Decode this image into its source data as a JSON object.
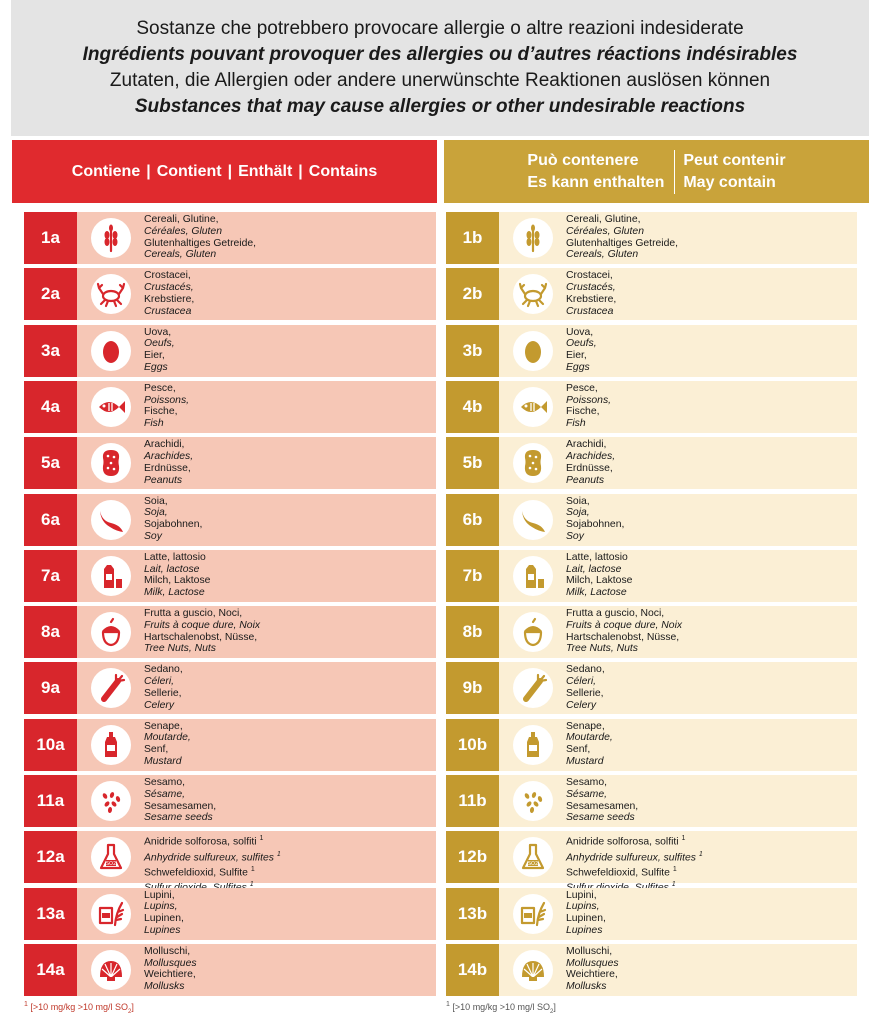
{
  "header": {
    "line_it": "Sostanze che potrebbero provocare allergie o altre reazioni indesiderate",
    "line_fr": "Ingrédients pouvant provoquer des allergies ou d’autres réactions indésirables",
    "line_de": "Zutaten, die Allergien oder andere unerwünschte Reaktionen auslösen können",
    "line_en": "Substances that may cause allergies or other undesirable reactions"
  },
  "contains": {
    "it": "Contiene",
    "fr": "Contient",
    "de": "Enthält",
    "en": "Contains",
    "sep": "|"
  },
  "may_contain": {
    "it": "Può contenere",
    "fr": "Peut contenir",
    "de": "Es kann enthalten",
    "en": "May contain"
  },
  "colors": {
    "red": "#e02a2e",
    "gold": "#c9a33a",
    "red_row": "#f6c7b6",
    "gold_row": "#fbefd5"
  },
  "allergens": [
    {
      "a": "1a",
      "b": "1b",
      "icon": "wheat-icon",
      "it": "Cereali, Glutine,",
      "fr": "Céréales, Gluten",
      "de": "Glutenhaltiges Getreide,",
      "en": "Cereals, Gluten"
    },
    {
      "a": "2a",
      "b": "2b",
      "icon": "crab-icon",
      "it": "Crostacei,",
      "fr": "Crustacés,",
      "de": "Krebstiere,",
      "en": "Crustacea"
    },
    {
      "a": "3a",
      "b": "3b",
      "icon": "egg-icon",
      "it": "Uova,",
      "fr": "Oeufs,",
      "de": "Eier,",
      "en": "Eggs"
    },
    {
      "a": "4a",
      "b": "4b",
      "icon": "fish-icon",
      "it": "Pesce,",
      "fr": "Poissons,",
      "de": "Fische,",
      "en": "Fish"
    },
    {
      "a": "5a",
      "b": "5b",
      "icon": "peanut-icon",
      "it": "Arachidi,",
      "fr": "Arachides,",
      "de": "Erdnüsse,",
      "en": "Peanuts"
    },
    {
      "a": "6a",
      "b": "6b",
      "icon": "soy-icon",
      "it": "Soia,",
      "fr": "Soja,",
      "de": "Sojabohnen,",
      "en": "Soy"
    },
    {
      "a": "7a",
      "b": "7b",
      "icon": "milk-icon",
      "it": "Latte, lattosio",
      "fr": "Lait, lactose",
      "de": "Milch, Laktose",
      "en": "Milk, Lactose"
    },
    {
      "a": "8a",
      "b": "8b",
      "icon": "nut-icon",
      "it": "Frutta a guscio, Noci,",
      "fr": "Fruits à coque dure, Noix",
      "de": "Hartschalenobst, Nüsse,",
      "en": "Tree Nuts, Nuts"
    },
    {
      "a": "9a",
      "b": "9b",
      "icon": "celery-icon",
      "it": "Sedano,",
      "fr": "Céleri,",
      "de": "Sellerie,",
      "en": "Celery"
    },
    {
      "a": "10a",
      "b": "10b",
      "icon": "mustard-icon",
      "it": "Senape,",
      "fr": "Moutarde,",
      "de": "Senf,",
      "en": "Mustard"
    },
    {
      "a": "11a",
      "b": "11b",
      "icon": "sesame-icon",
      "it": "Sesamo,",
      "fr": "Sésame,",
      "de": "Sesamesamen,",
      "en": "Sesame seeds"
    },
    {
      "a": "12a",
      "b": "12b",
      "icon": "flask-icon",
      "it": "Anidride solforosa, solfiti",
      "fr": "Anhydride sulfureux, sulfites",
      "de": "Schwefeldioxid, Sulfite",
      "en": "Sulfur dioxide, Sulfites",
      "sup": "1",
      "flask_label": "SO2"
    },
    {
      "a": "13a",
      "b": "13b",
      "icon": "lupin-icon",
      "it": "Lupini,",
      "fr": "Lupins,",
      "de": "Lupinen,",
      "en": "Lupines"
    },
    {
      "a": "14a",
      "b": "14b",
      "icon": "shell-icon",
      "it": "Molluschi,",
      "fr": "Mollusques",
      "de": "Weichtiere,",
      "en": "Mollusks"
    }
  ],
  "footnote": {
    "mark": "1",
    "text": "[>10 mg/kg >10 mg/l SO",
    "sub": "2",
    "close": "]"
  }
}
